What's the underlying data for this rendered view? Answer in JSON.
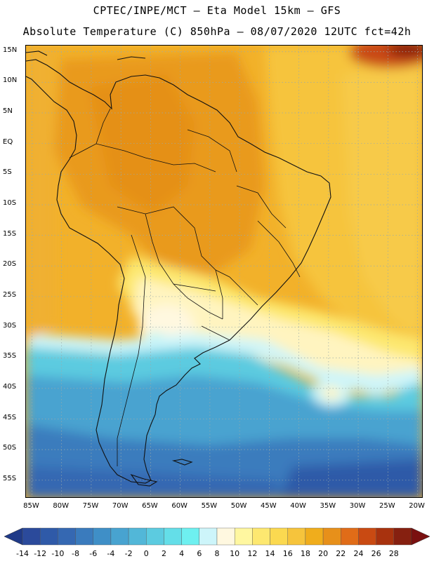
{
  "header": {
    "line1": "CPTEC/INPE/MCT –  Eta Model 15km – GFS",
    "line2": "Absolute Temperature (C) 850hPa – 08/07/2020 12UTC fct=42h"
  },
  "map": {
    "lat_ticks": [
      "15N",
      "10N",
      "5N",
      "EQ",
      "5S",
      "10S",
      "15S",
      "20S",
      "25S",
      "30S",
      "35S",
      "40S",
      "45S",
      "50S",
      "55S"
    ],
    "lon_ticks": [
      "85W",
      "80W",
      "75W",
      "70W",
      "65W",
      "60W",
      "55W",
      "50W",
      "45W",
      "40W",
      "35W",
      "30W",
      "25W",
      "20W"
    ],
    "lat_values": [
      15,
      10,
      5,
      0,
      -5,
      -10,
      -15,
      -20,
      -25,
      -30,
      -35,
      -40,
      -45,
      -50,
      -55
    ],
    "lon_values": [
      -85,
      -80,
      -75,
      -70,
      -65,
      -60,
      -55,
      -50,
      -45,
      -40,
      -35,
      -30,
      -25,
      -20
    ],
    "extent": {
      "lon_min": -86,
      "lon_max": -19,
      "lat_min": -58,
      "lat_max": 16
    }
  },
  "colorbar": {
    "labels": [
      "-14",
      "-12",
      "-10",
      "-8",
      "-6",
      "-4",
      "-2",
      "0",
      "2",
      "4",
      "6",
      "8",
      "10",
      "12",
      "14",
      "16",
      "18",
      "20",
      "22",
      "24",
      "26",
      "28"
    ],
    "colors": [
      "#2b4a9b",
      "#2f5aa8",
      "#3568b2",
      "#3a7bbd",
      "#3f8fc7",
      "#48a3d0",
      "#52b7d8",
      "#5ccbe0",
      "#64dee8",
      "#6ef0f0",
      "#cdf5fa",
      "#fff8e0",
      "#fff7a0",
      "#fde870",
      "#fbd950",
      "#f6c43c",
      "#f0ad1c",
      "#e7901a",
      "#e06c18",
      "#c94a12",
      "#a8320e",
      "#862010"
    ],
    "low_color": "#1f3a88",
    "high_color": "#7a1010"
  }
}
